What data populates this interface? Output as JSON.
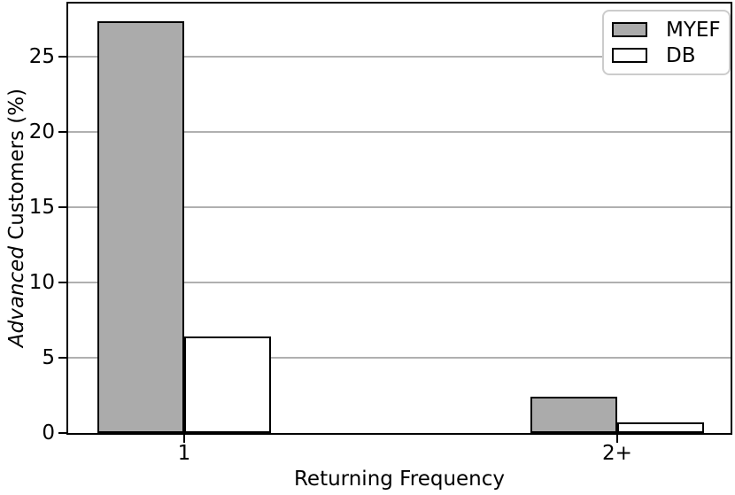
{
  "chart_data": {
    "type": "bar",
    "categories": [
      "1",
      "2+"
    ],
    "series": [
      {
        "name": "MYEF",
        "values": [
          27.3,
          2.4
        ],
        "color": "#ababab"
      },
      {
        "name": "DB",
        "values": [
          6.4,
          0.7
        ],
        "color": "#ffffff"
      }
    ],
    "bar_edge_color": "#000000",
    "xlabel": "Returning Frequency",
    "ylabel": "Advanced Customers (%)",
    "ylabel_italic_part": "Advanced",
    "ylabel_regular_part": " Customers (%)",
    "yticks": [
      0,
      5,
      10,
      15,
      20,
      25
    ],
    "ylim": [
      0,
      28.5
    ],
    "grid": "horizontal",
    "grid_color": "#b0b0b0",
    "legend": {
      "position": "upper-right",
      "border_color": "#cccccc"
    },
    "text_color": "#000000",
    "background_color": "#ffffff"
  }
}
